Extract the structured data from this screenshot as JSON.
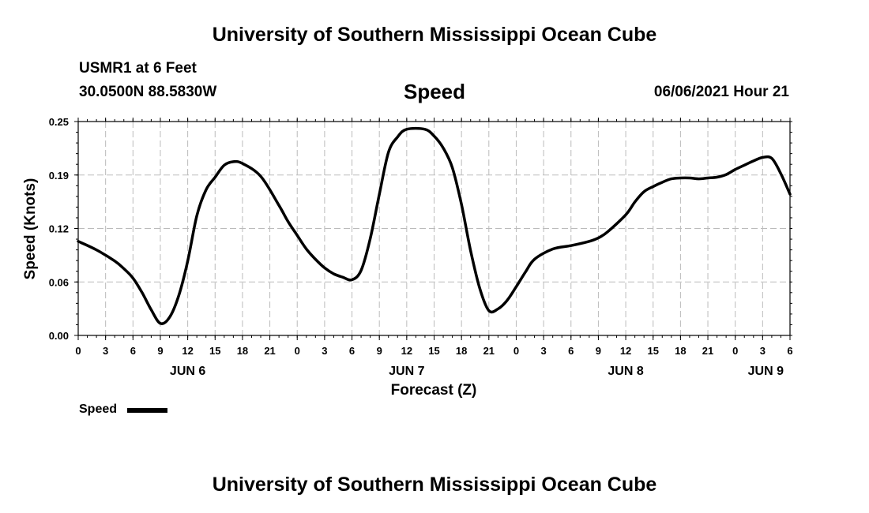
{
  "header": {
    "title": "University of Southern Mississippi Ocean Cube",
    "station": "USMR1 at 6 Feet",
    "coords": "30.0500N  88.5830W",
    "variable": "Speed",
    "datetime": "06/06/2021 Hour 21"
  },
  "footer": {
    "title": "University of Southern Mississippi Ocean Cube"
  },
  "legend": {
    "label": "Speed"
  },
  "colors": {
    "line": "#000000",
    "grid": "#bbbbbb"
  },
  "chart_data": {
    "type": "line",
    "xlabel": "Forecast (Z)",
    "ylabel": "Speed (Knots)",
    "ylim": [
      0,
      0.25
    ],
    "yticks": [
      "0.00",
      "0.06",
      "0.12",
      "0.19",
      "0.25"
    ],
    "x_hour_ticks": [
      "0",
      "3",
      "6",
      "9",
      "12",
      "15",
      "18",
      "21",
      "0",
      "3",
      "6",
      "9",
      "12",
      "15",
      "18",
      "21",
      "0",
      "3",
      "6",
      "9",
      "12",
      "15",
      "18",
      "21",
      "0",
      "3",
      "6"
    ],
    "date_labels": [
      "JUN 6",
      "JUN 7",
      "JUN 8",
      "JUN 9"
    ],
    "x_units": "hours from 2021-06-06 00Z",
    "xlim": [
      0,
      78
    ],
    "grid": true,
    "series": [
      {
        "name": "Speed",
        "x": [
          0,
          2,
          4,
          5,
          6,
          7,
          8,
          9,
          10,
          11,
          12,
          13,
          14,
          15,
          16,
          17,
          18,
          20,
          22,
          23,
          24,
          25,
          26,
          27,
          28,
          29,
          30,
          31,
          32,
          33,
          34,
          35,
          36,
          38,
          39,
          40,
          41,
          42,
          43,
          44,
          45,
          46,
          47,
          48,
          49,
          50,
          52,
          54,
          56,
          57,
          58,
          60,
          61,
          62,
          63,
          64,
          65,
          66,
          67,
          68,
          69,
          70,
          71,
          72,
          73,
          74,
          75,
          76,
          77,
          78
        ],
        "y": [
          0.11,
          0.1,
          0.087,
          0.078,
          0.067,
          0.05,
          0.03,
          0.014,
          0.021,
          0.046,
          0.087,
          0.14,
          0.17,
          0.185,
          0.199,
          0.203,
          0.201,
          0.186,
          0.152,
          0.133,
          0.117,
          0.101,
          0.089,
          0.079,
          0.072,
          0.068,
          0.065,
          0.076,
          0.113,
          0.165,
          0.214,
          0.232,
          0.241,
          0.241,
          0.233,
          0.219,
          0.196,
          0.153,
          0.099,
          0.055,
          0.029,
          0.031,
          0.041,
          0.057,
          0.074,
          0.089,
          0.101,
          0.105,
          0.11,
          0.114,
          0.121,
          0.141,
          0.156,
          0.168,
          0.174,
          0.179,
          0.183,
          0.184,
          0.184,
          0.183,
          0.184,
          0.185,
          0.188,
          0.194,
          0.199,
          0.204,
          0.208,
          0.207,
          0.189,
          0.165
        ]
      }
    ]
  }
}
